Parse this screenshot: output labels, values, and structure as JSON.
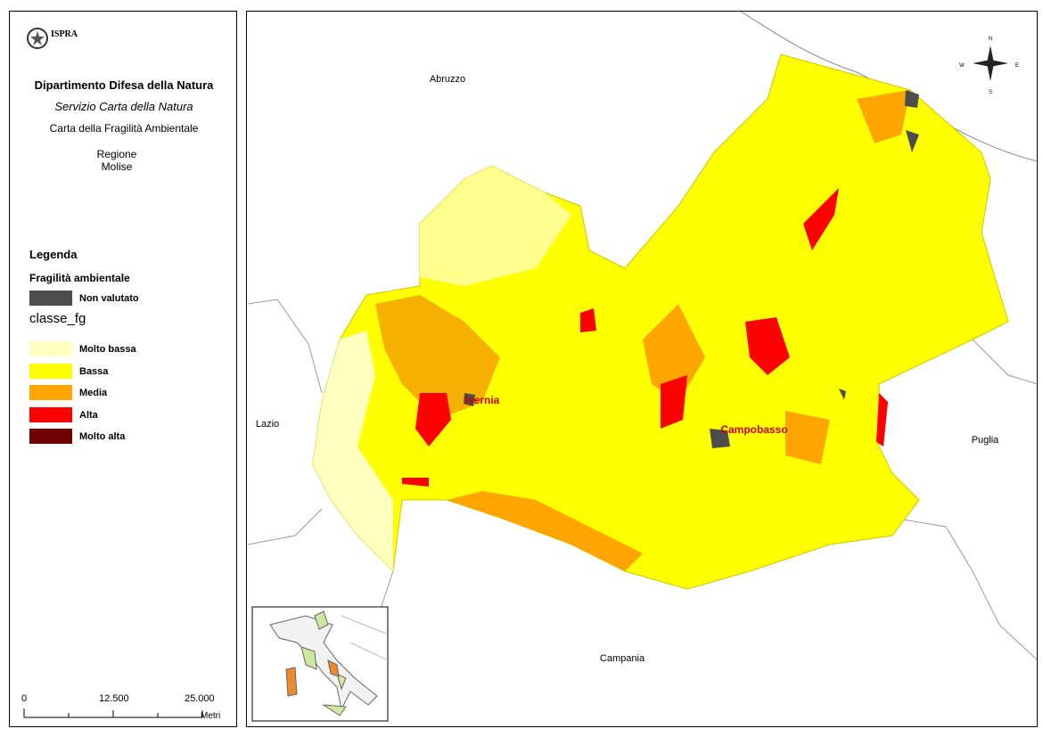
{
  "header": {
    "logo": "ISPRA",
    "department": "Dipartimento Difesa della Natura",
    "service": "Servizio Carta della Natura",
    "map_title": "Carta della Fragilità Ambientale",
    "region_label": "Regione",
    "region_name": "Molise"
  },
  "legend": {
    "title": "Legenda",
    "subtitle": "Fragilità ambientale",
    "not_rated": {
      "label": "Non valutato",
      "color": "#4d4d4d"
    },
    "field": "classe_fg",
    "items": [
      {
        "label": "Molto bassa",
        "color": "#ffffc0"
      },
      {
        "label": "Bassa",
        "color": "#ffff00"
      },
      {
        "label": "Media",
        "color": "#ffa500"
      },
      {
        "label": "Alta",
        "color": "#ff0000"
      },
      {
        "label": "Molto alta",
        "color": "#730000"
      }
    ]
  },
  "scale_bar": {
    "ticks": [
      "0",
      "12.500",
      "25.000"
    ],
    "unit": "Metri"
  },
  "map": {
    "neighbors": [
      "Abruzzo",
      "Lazio",
      "Puglia",
      "Campania"
    ],
    "cities": [
      "Isernia",
      "Campobasso"
    ],
    "compass": [
      "N",
      "W",
      "E",
      "S"
    ]
  }
}
